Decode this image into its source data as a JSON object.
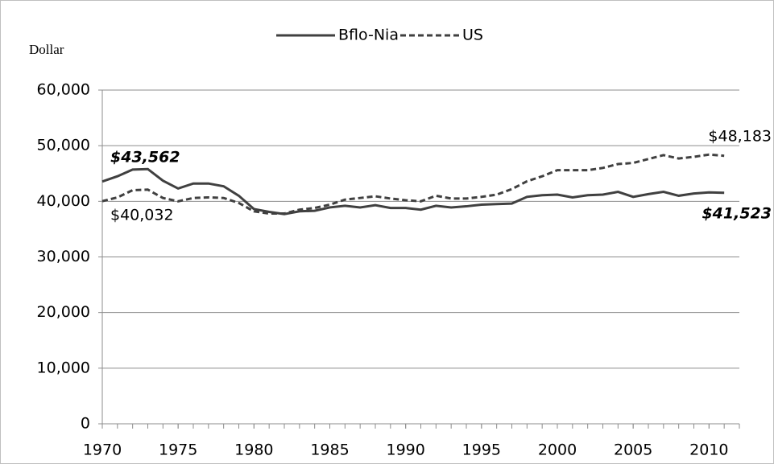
{
  "chart_data": {
    "type": "line",
    "y_axis_label": "Dollar",
    "x": [
      1970,
      1971,
      1972,
      1973,
      1974,
      1975,
      1976,
      1977,
      1978,
      1979,
      1980,
      1981,
      1982,
      1983,
      1984,
      1985,
      1986,
      1987,
      1988,
      1989,
      1990,
      1991,
      1992,
      1993,
      1994,
      1995,
      1996,
      1997,
      1998,
      1999,
      2000,
      2001,
      2002,
      2003,
      2004,
      2005,
      2006,
      2007,
      2008,
      2009,
      2010,
      2011
    ],
    "series": [
      {
        "name": "Bflo-Nia",
        "color": "#404040",
        "line_style": "solid",
        "values": [
          43562,
          44500,
          45700,
          45800,
          43700,
          42300,
          43200,
          43200,
          42700,
          41000,
          38600,
          38100,
          37700,
          38200,
          38300,
          38900,
          39200,
          38900,
          39300,
          38800,
          38800,
          38500,
          39200,
          38900,
          39100,
          39400,
          39500,
          39600,
          40800,
          41100,
          41200,
          40700,
          41100,
          41200,
          41700,
          40800,
          41300,
          41700,
          41000,
          41400,
          41600,
          41523
        ]
      },
      {
        "name": "US",
        "color": "#404040",
        "line_style": "dashed",
        "values": [
          40032,
          40700,
          42000,
          42100,
          40600,
          40000,
          40600,
          40700,
          40600,
          39700,
          38200,
          37800,
          37800,
          38500,
          38800,
          39400,
          40300,
          40600,
          40900,
          40500,
          40200,
          40000,
          41000,
          40500,
          40500,
          40800,
          41200,
          42200,
          43600,
          44500,
          45600,
          45600,
          45600,
          46000,
          46700,
          46900,
          47600,
          48300,
          47700,
          48000,
          48400,
          48183
        ]
      }
    ],
    "annotations": [
      {
        "text": "$43,562",
        "style": "bold-italic"
      },
      {
        "text": "$40,032",
        "style": "normal"
      },
      {
        "text": "$48,183",
        "style": "normal"
      },
      {
        "text": "$41,523",
        "style": "bold-italic"
      }
    ],
    "xlim": [
      1970,
      2012
    ],
    "xticks": [
      1970,
      1975,
      1980,
      1985,
      1990,
      1995,
      2000,
      2005,
      2010
    ],
    "ylim": [
      0,
      60000
    ],
    "yticks": [
      0,
      {
        "value": 10000,
        "label": "10,000"
      },
      {
        "value": 20000,
        "label": "20,000"
      },
      {
        "value": 30000,
        "label": "30,000"
      },
      {
        "value": 40000,
        "label": "40,000"
      },
      {
        "value": 50000,
        "label": "50,000"
      },
      {
        "value": 60000,
        "label": "60,000"
      }
    ],
    "grid": true,
    "legend": "top"
  }
}
